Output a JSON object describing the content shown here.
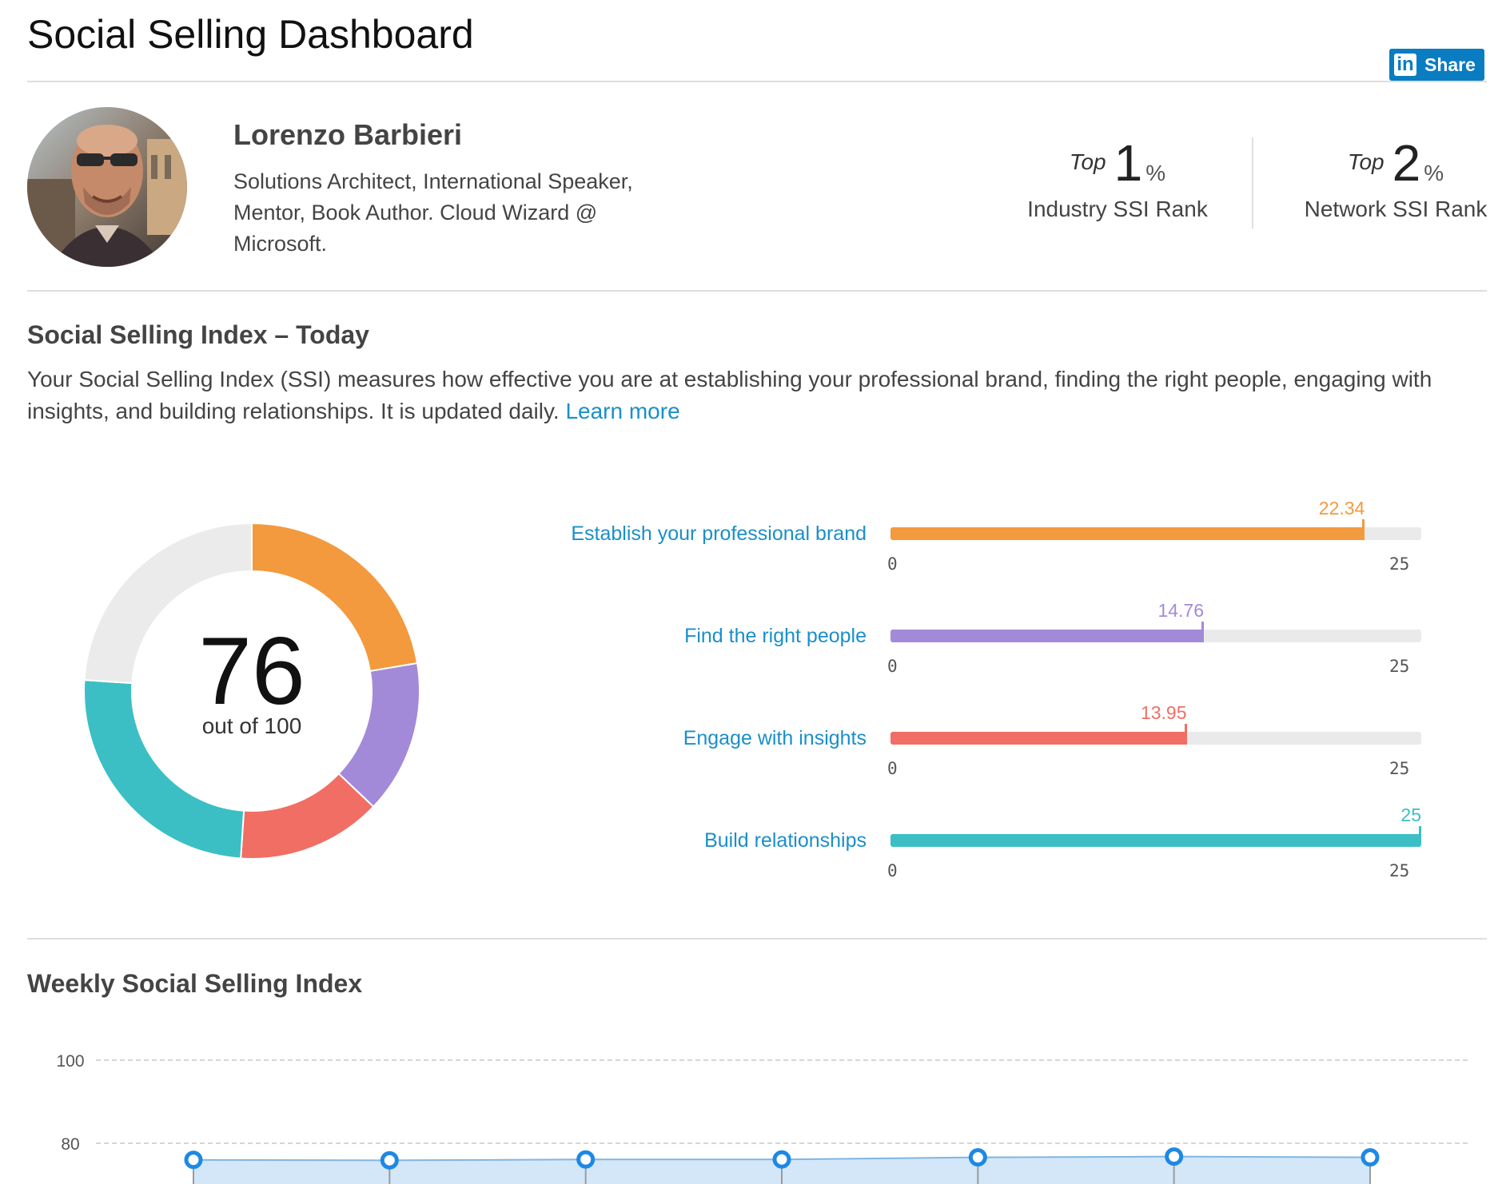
{
  "header": {
    "title": "Social Selling Dashboard",
    "share_label": "Share",
    "share_logo": "in"
  },
  "profile": {
    "name": "Lorenzo Barbieri",
    "headline": "Solutions Architect, International Speaker, Mentor, Book Author. Cloud Wizard @ Microsoft.",
    "avatar_icon": "profile-photo"
  },
  "ranks": [
    {
      "top_word": "Top",
      "value": "1",
      "unit": "%",
      "label": "Industry SSI Rank"
    },
    {
      "top_word": "Top",
      "value": "2",
      "unit": "%",
      "label": "Network SSI Rank"
    }
  ],
  "ssi_today": {
    "title": "Social Selling Index – Today",
    "description": "Your Social Selling Index (SSI) measures how effective you are at establishing your professional brand, finding the right people, engaging with insights, and building relationships. It is updated daily.",
    "learn_more": "Learn more",
    "score": "76",
    "score_sub": "out of 100",
    "track_color": "#eaeaea"
  },
  "weekly": {
    "title": "Weekly Social Selling Index"
  },
  "chart_data": [
    {
      "type": "pie",
      "variant": "donut",
      "total": 100,
      "slices": [
        {
          "label": "Establish your professional brand",
          "value": 22.34,
          "color": "#f39a3e"
        },
        {
          "label": "Find the right people",
          "value": 14.76,
          "color": "#a38ad8"
        },
        {
          "label": "Engage with insights",
          "value": 13.95,
          "color": "#f06e64"
        },
        {
          "label": "Build relationships",
          "value": 25,
          "color": "#3bbfc4"
        }
      ],
      "remainder_color": "#ebebeb"
    },
    {
      "type": "bar",
      "orientation": "horizontal",
      "categories": [
        "Establish your professional brand",
        "Find the right people",
        "Engage with insights",
        "Build relationships"
      ],
      "values": [
        22.34,
        14.76,
        13.95,
        25
      ],
      "value_labels": [
        "22.34",
        "14.76",
        "13.95",
        "25"
      ],
      "colors": [
        "#f39a3e",
        "#a38ad8",
        "#f06e64",
        "#3bbfc4"
      ],
      "xlim": [
        0,
        25
      ],
      "tick_min": "0",
      "tick_max": "25"
    },
    {
      "type": "area",
      "yticks": [
        "100",
        "80"
      ],
      "ylim": [
        74,
        100
      ],
      "values": [
        76,
        75.9,
        76.1,
        76.1,
        76.6,
        76.8,
        76.6
      ],
      "line_color": "#1e88e5",
      "fill_color": "#d3e7f8",
      "grid": true
    }
  ]
}
